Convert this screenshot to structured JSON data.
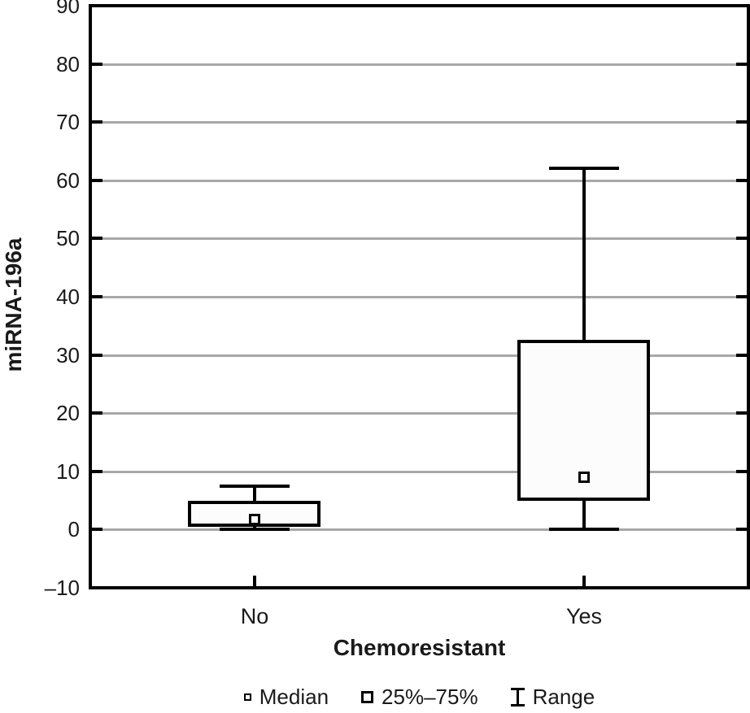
{
  "chart_data": {
    "type": "box",
    "title": "",
    "ylabel": "miRNA-196a",
    "xlabel": "Chemoresistant",
    "ylim": [
      -10,
      90
    ],
    "ytick_step": 10,
    "yticks": [
      90,
      80,
      70,
      60,
      50,
      40,
      30,
      20,
      10,
      0,
      -10
    ],
    "ytick_labels": [
      "90",
      "80",
      "70",
      "60",
      "50",
      "40",
      "30",
      "20",
      "10",
      "0",
      "–10"
    ],
    "categories": [
      "No",
      "Yes"
    ],
    "series": [
      {
        "category": "No",
        "min": 0,
        "q1": 0.7,
        "median": 1.8,
        "q3": 4.7,
        "max": 7.5
      },
      {
        "category": "Yes",
        "min": 0,
        "q1": 5.2,
        "median": 9,
        "q3": 32.3,
        "max": 62
      }
    ],
    "legend": [
      {
        "symbol": "median-square",
        "label": "Median"
      },
      {
        "symbol": "iqr-box",
        "label": "25%–75%"
      },
      {
        "symbol": "range-whisker",
        "label": "Range"
      }
    ],
    "grid": "horizontal",
    "legend_position": "bottom",
    "colors": {
      "stroke": "#000000",
      "box_fill": "#fcfcfc",
      "gridline": "#a8a8a8",
      "text": "#1a1a1a"
    }
  }
}
